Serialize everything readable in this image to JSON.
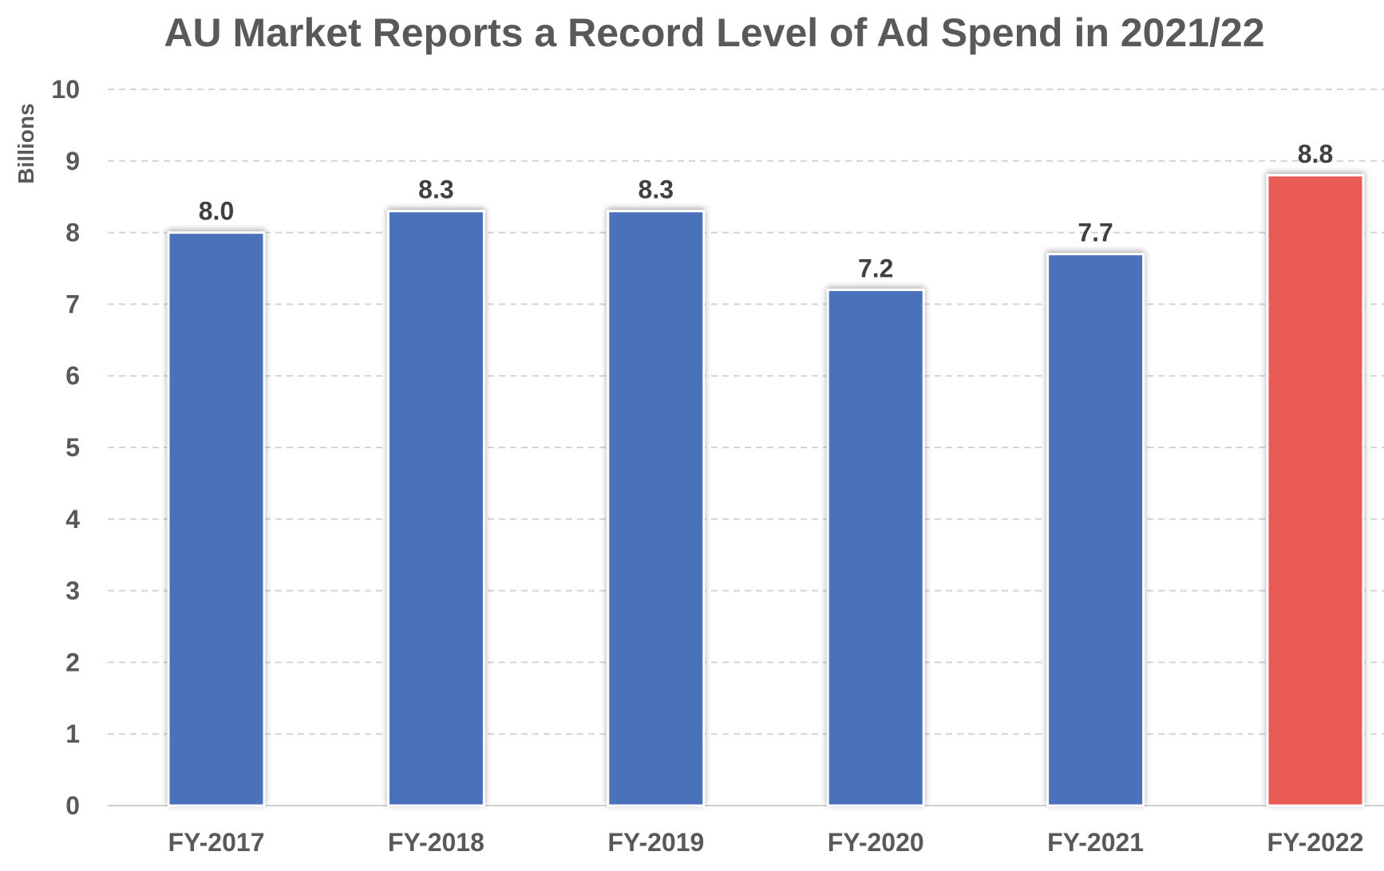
{
  "chart_data": {
    "type": "bar",
    "title": "AU Market Reports a Record Level of Ad Spend in 2021/22",
    "xlabel": "",
    "ylabel": "Billions",
    "categories": [
      "FY-2017",
      "FY-2018",
      "FY-2019",
      "FY-2020",
      "FY-2021",
      "FY-2022"
    ],
    "values": [
      8.0,
      8.3,
      8.3,
      7.2,
      7.7,
      8.8
    ],
    "data_labels": [
      "8.0",
      "8.3",
      "8.3",
      "7.2",
      "7.7",
      "8.8"
    ],
    "ylim": [
      0,
      10
    ],
    "yticks": [
      "0",
      "1",
      "2",
      "3",
      "4",
      "5",
      "6",
      "7",
      "8",
      "9",
      "10"
    ],
    "grid": true,
    "legend": "none",
    "colors": {
      "default_bar": "#4a72bb",
      "highlight_bar": "#e95a55",
      "highlight_category": "FY-2022"
    }
  }
}
